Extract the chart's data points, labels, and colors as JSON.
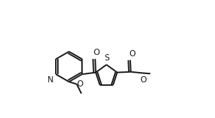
{
  "bg_color": "#ffffff",
  "line_color": "#1a1a1a",
  "line_width": 1.5,
  "fig_width": 3.12,
  "fig_height": 1.72,
  "dpi": 100,
  "xlim": [
    0.0,
    1.0
  ],
  "ylim": [
    0.0,
    1.0
  ]
}
